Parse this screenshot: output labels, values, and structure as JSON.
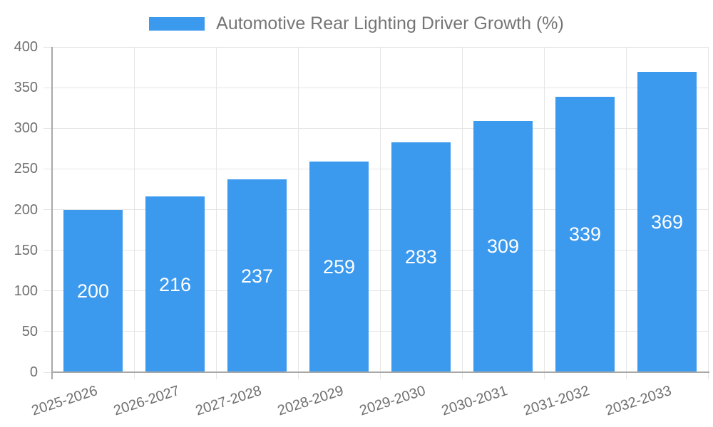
{
  "legend": {
    "label": "Automotive Rear Lighting Driver Growth (%)"
  },
  "chart_data": {
    "type": "bar",
    "title": "Automotive Rear Lighting Driver Growth (%)",
    "categories": [
      "2025-2026",
      "2026-2027",
      "2027-2028",
      "2028-2029",
      "2029-2030",
      "2030-2031",
      "2031-2032",
      "2032-2033"
    ],
    "values": [
      200,
      216,
      237,
      259,
      283,
      309,
      339,
      369
    ],
    "xlabel": "",
    "ylabel": "",
    "ylim": [
      0,
      400
    ],
    "ytick_step": 50,
    "yticks": [
      0,
      50,
      100,
      150,
      200,
      250,
      300,
      350,
      400
    ],
    "grid": true,
    "legend_position": "top",
    "bar_labels_shown": true,
    "bar_label_placement": "center",
    "x_label_rotation_deg": -18,
    "colors": {
      "bar": "#3b99ee",
      "bar_label": "#ffffff",
      "axis_text": "#707070",
      "legend_text": "#757575",
      "grid": "#e5e5e5",
      "axis_line": "#a8a8a8",
      "background": "#ffffff"
    }
  }
}
